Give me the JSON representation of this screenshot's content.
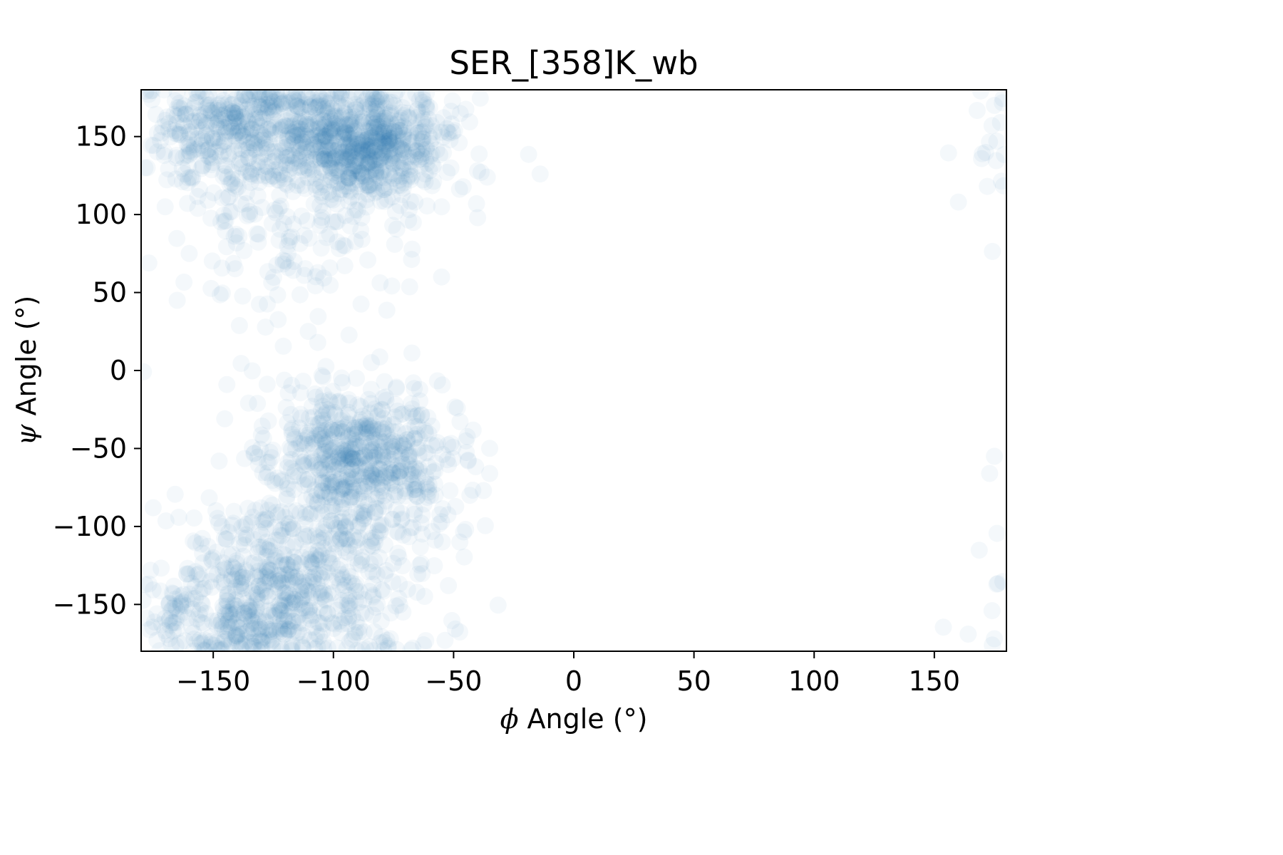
{
  "chart_data": {
    "type": "scatter",
    "title": "SER_[358]K_wb",
    "xlabel_symbol": "ϕ",
    "xlabel_text": " Angle (°)",
    "ylabel_symbol": "ψ",
    "ylabel_text": " Angle (°)",
    "xlim": [
      -180,
      180
    ],
    "ylim": [
      -180,
      180
    ],
    "xticks": [
      -150,
      -100,
      -50,
      0,
      50,
      100,
      150
    ],
    "yticks": [
      -150,
      -100,
      -50,
      0,
      50,
      100,
      150
    ],
    "xtick_labels": [
      "−150",
      "−100",
      "−50",
      "0",
      "50",
      "100",
      "150"
    ],
    "ytick_labels": [
      "−150",
      "−100",
      "−50",
      "0",
      "50",
      "100",
      "150"
    ],
    "grid": false,
    "legend": "none",
    "marker_color": "#1f77b4",
    "marker_alpha": 0.05,
    "clusters": [
      {
        "center": [
          -85,
          145
        ],
        "spread": [
          18,
          18
        ],
        "count": 700
      },
      {
        "center": [
          -140,
          155
        ],
        "spread": [
          22,
          20
        ],
        "count": 500
      },
      {
        "center": [
          -110,
          100
        ],
        "spread": [
          25,
          30
        ],
        "count": 140
      },
      {
        "center": [
          -90,
          -55
        ],
        "spread": [
          20,
          22
        ],
        "count": 600
      },
      {
        "center": [
          -130,
          -150
        ],
        "spread": [
          25,
          25
        ],
        "count": 550
      },
      {
        "center": [
          -100,
          -110
        ],
        "spread": [
          25,
          25
        ],
        "count": 250
      },
      {
        "center": [
          -120,
          30
        ],
        "spread": [
          25,
          30
        ],
        "count": 40
      }
    ],
    "outliers": [
      [
        -14,
        126
      ],
      [
        160,
        108
      ],
      [
        175,
        170
      ],
      [
        174,
        157
      ],
      [
        176,
        147
      ],
      [
        175,
        -55
      ],
      [
        173,
        -66
      ],
      [
        174,
        -154
      ],
      [
        176,
        -137
      ],
      [
        175,
        -172
      ],
      [
        -35,
        -66
      ],
      [
        -40,
        98
      ],
      [
        -55,
        60
      ],
      [
        -55,
        105
      ],
      [
        -36,
        124
      ],
      [
        -165,
        45
      ],
      [
        -160,
        75
      ],
      [
        -170,
        105
      ],
      [
        -175,
        -88
      ]
    ]
  }
}
